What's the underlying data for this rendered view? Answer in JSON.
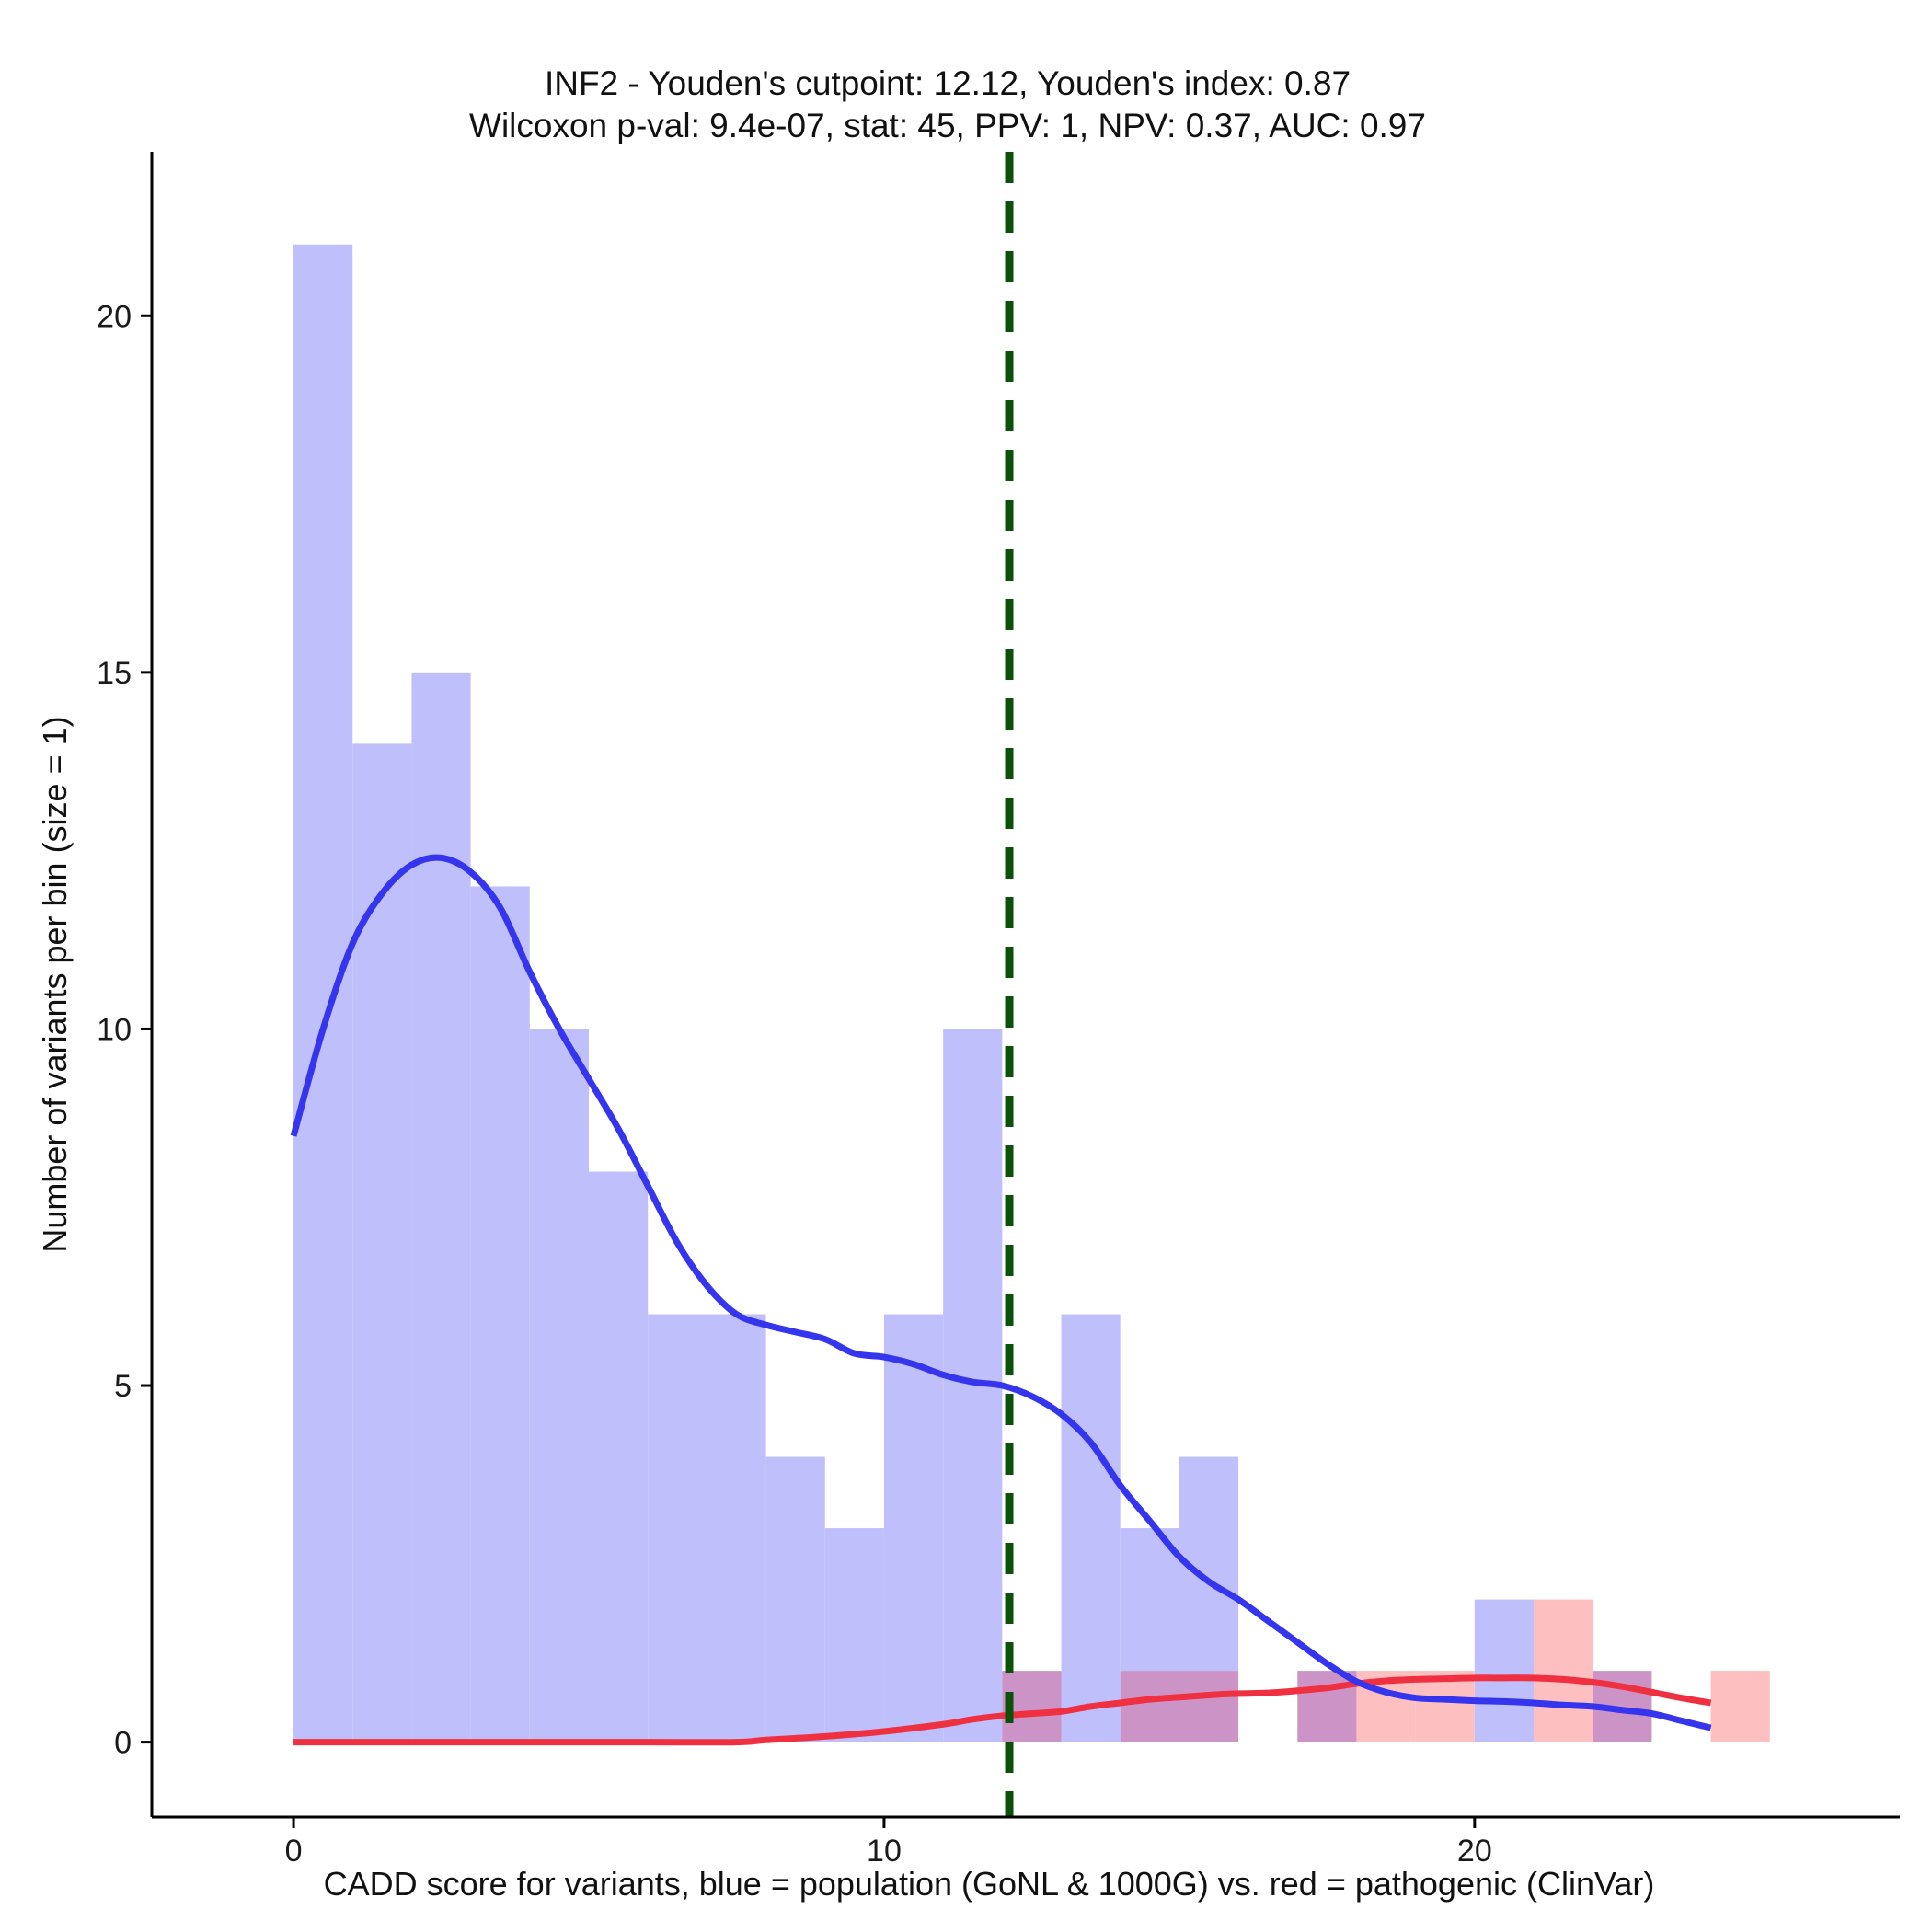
{
  "chart_data": {
    "type": "bar",
    "title": "INF2 - Youden's cutpoint: 12.12, Youden's index: 0.87",
    "subtitle": "Wilcoxon p-val: 9.4e-07, stat: 45, PPV: 1, NPV: 0.37, AUC: 0.97",
    "xlabel": "CADD score for variants, blue = population (GoNL & 1000G) vs. red = pathogenic (ClinVar)",
    "ylabel": "Number of variants per bin (size = 1)",
    "xlim": [
      -2.4,
      27.2
    ],
    "ylim": [
      -1.05,
      22.3
    ],
    "x_ticks": [
      0,
      10,
      20
    ],
    "y_ticks": [
      0,
      5,
      10,
      15,
      20
    ],
    "bin_width": 1,
    "grid": false,
    "cutpoint": 12.12,
    "series": [
      {
        "name": "population (GoNL & 1000G)",
        "color": "#8080ff",
        "bins": [
          {
            "x0": 0,
            "x1": 1,
            "count": 21
          },
          {
            "x0": 1,
            "x1": 2,
            "count": 14
          },
          {
            "x0": 2,
            "x1": 3,
            "count": 15
          },
          {
            "x0": 3,
            "x1": 4,
            "count": 12
          },
          {
            "x0": 4,
            "x1": 5,
            "count": 10
          },
          {
            "x0": 5,
            "x1": 6,
            "count": 8
          },
          {
            "x0": 6,
            "x1": 7,
            "count": 6
          },
          {
            "x0": 7,
            "x1": 8,
            "count": 6
          },
          {
            "x0": 8,
            "x1": 9,
            "count": 4
          },
          {
            "x0": 9,
            "x1": 10,
            "count": 3
          },
          {
            "x0": 10,
            "x1": 11,
            "count": 6
          },
          {
            "x0": 11,
            "x1": 12,
            "count": 10
          },
          {
            "x0": 12,
            "x1": 13,
            "count": 1
          },
          {
            "x0": 13,
            "x1": 14,
            "count": 6
          },
          {
            "x0": 14,
            "x1": 15,
            "count": 3
          },
          {
            "x0": 15,
            "x1": 16,
            "count": 4
          },
          {
            "x0": 17,
            "x1": 18,
            "count": 1
          },
          {
            "x0": 20,
            "x1": 21,
            "count": 2
          },
          {
            "x0": 22,
            "x1": 23,
            "count": 1
          }
        ],
        "density_curve": [
          [
            0,
            8.5
          ],
          [
            0.5,
            10.0
          ],
          [
            1.0,
            11.2
          ],
          [
            1.5,
            11.9
          ],
          [
            2.0,
            12.3
          ],
          [
            2.5,
            12.4
          ],
          [
            3.0,
            12.2
          ],
          [
            3.5,
            11.7
          ],
          [
            4.0,
            10.8
          ],
          [
            4.5,
            10.0
          ],
          [
            5.0,
            9.3
          ],
          [
            5.5,
            8.6
          ],
          [
            6.0,
            7.8
          ],
          [
            6.5,
            7.0
          ],
          [
            7.0,
            6.4
          ],
          [
            7.5,
            6.0
          ],
          [
            8.0,
            5.85
          ],
          [
            8.5,
            5.75
          ],
          [
            9.0,
            5.65
          ],
          [
            9.5,
            5.45
          ],
          [
            10.0,
            5.4
          ],
          [
            10.5,
            5.3
          ],
          [
            11.0,
            5.15
          ],
          [
            11.5,
            5.05
          ],
          [
            12.0,
            5.0
          ],
          [
            12.5,
            4.85
          ],
          [
            13.0,
            4.6
          ],
          [
            13.5,
            4.2
          ],
          [
            14.0,
            3.6
          ],
          [
            14.5,
            3.1
          ],
          [
            15.0,
            2.6
          ],
          [
            15.5,
            2.25
          ],
          [
            16.0,
            2.0
          ],
          [
            16.5,
            1.7
          ],
          [
            17.0,
            1.4
          ],
          [
            17.5,
            1.1
          ],
          [
            18.0,
            0.85
          ],
          [
            18.5,
            0.7
          ],
          [
            19.0,
            0.62
          ],
          [
            19.5,
            0.6
          ],
          [
            20.0,
            0.58
          ],
          [
            20.5,
            0.57
          ],
          [
            21.0,
            0.55
          ],
          [
            21.5,
            0.52
          ],
          [
            22.0,
            0.5
          ],
          [
            22.5,
            0.45
          ],
          [
            23.0,
            0.4
          ],
          [
            23.5,
            0.3
          ],
          [
            24.0,
            0.2
          ]
        ]
      },
      {
        "name": "pathogenic (ClinVar)",
        "color": "#ff8080",
        "bins": [
          {
            "x0": 12,
            "x1": 13,
            "count": 1
          },
          {
            "x0": 14,
            "x1": 15,
            "count": 1
          },
          {
            "x0": 15,
            "x1": 16,
            "count": 1
          },
          {
            "x0": 17,
            "x1": 18,
            "count": 1
          },
          {
            "x0": 18,
            "x1": 19,
            "count": 1
          },
          {
            "x0": 19,
            "x1": 20,
            "count": 1
          },
          {
            "x0": 21,
            "x1": 22,
            "count": 2
          },
          {
            "x0": 22,
            "x1": 23,
            "count": 1
          },
          {
            "x0": 24,
            "x1": 25,
            "count": 1
          }
        ],
        "density_curve": [
          [
            0,
            0
          ],
          [
            2,
            0
          ],
          [
            4,
            0
          ],
          [
            6,
            0
          ],
          [
            7.5,
            0
          ],
          [
            8.0,
            0.03
          ],
          [
            9.0,
            0.08
          ],
          [
            10.0,
            0.15
          ],
          [
            11.0,
            0.25
          ],
          [
            11.5,
            0.32
          ],
          [
            12.0,
            0.37
          ],
          [
            12.5,
            0.4
          ],
          [
            13.0,
            0.43
          ],
          [
            13.5,
            0.5
          ],
          [
            14.0,
            0.55
          ],
          [
            14.5,
            0.6
          ],
          [
            15.0,
            0.63
          ],
          [
            15.5,
            0.66
          ],
          [
            16.0,
            0.68
          ],
          [
            16.5,
            0.69
          ],
          [
            17.0,
            0.72
          ],
          [
            17.5,
            0.76
          ],
          [
            18.0,
            0.82
          ],
          [
            18.5,
            0.86
          ],
          [
            19.0,
            0.88
          ],
          [
            19.5,
            0.89
          ],
          [
            20.0,
            0.9
          ],
          [
            20.5,
            0.9
          ],
          [
            21.0,
            0.9
          ],
          [
            21.5,
            0.88
          ],
          [
            22.0,
            0.84
          ],
          [
            22.5,
            0.78
          ],
          [
            23.0,
            0.7
          ],
          [
            23.5,
            0.62
          ],
          [
            24.0,
            0.55
          ]
        ]
      }
    ]
  },
  "colors": {
    "population_fill": "#bfbffc",
    "pathogenic_fill": "#fdbfbf",
    "overlap_fill": "#cc94c6",
    "population_line": "#3535ee",
    "pathogenic_line": "#ee3040",
    "cutpoint_line": "#0a520a",
    "axis": "#000000"
  }
}
